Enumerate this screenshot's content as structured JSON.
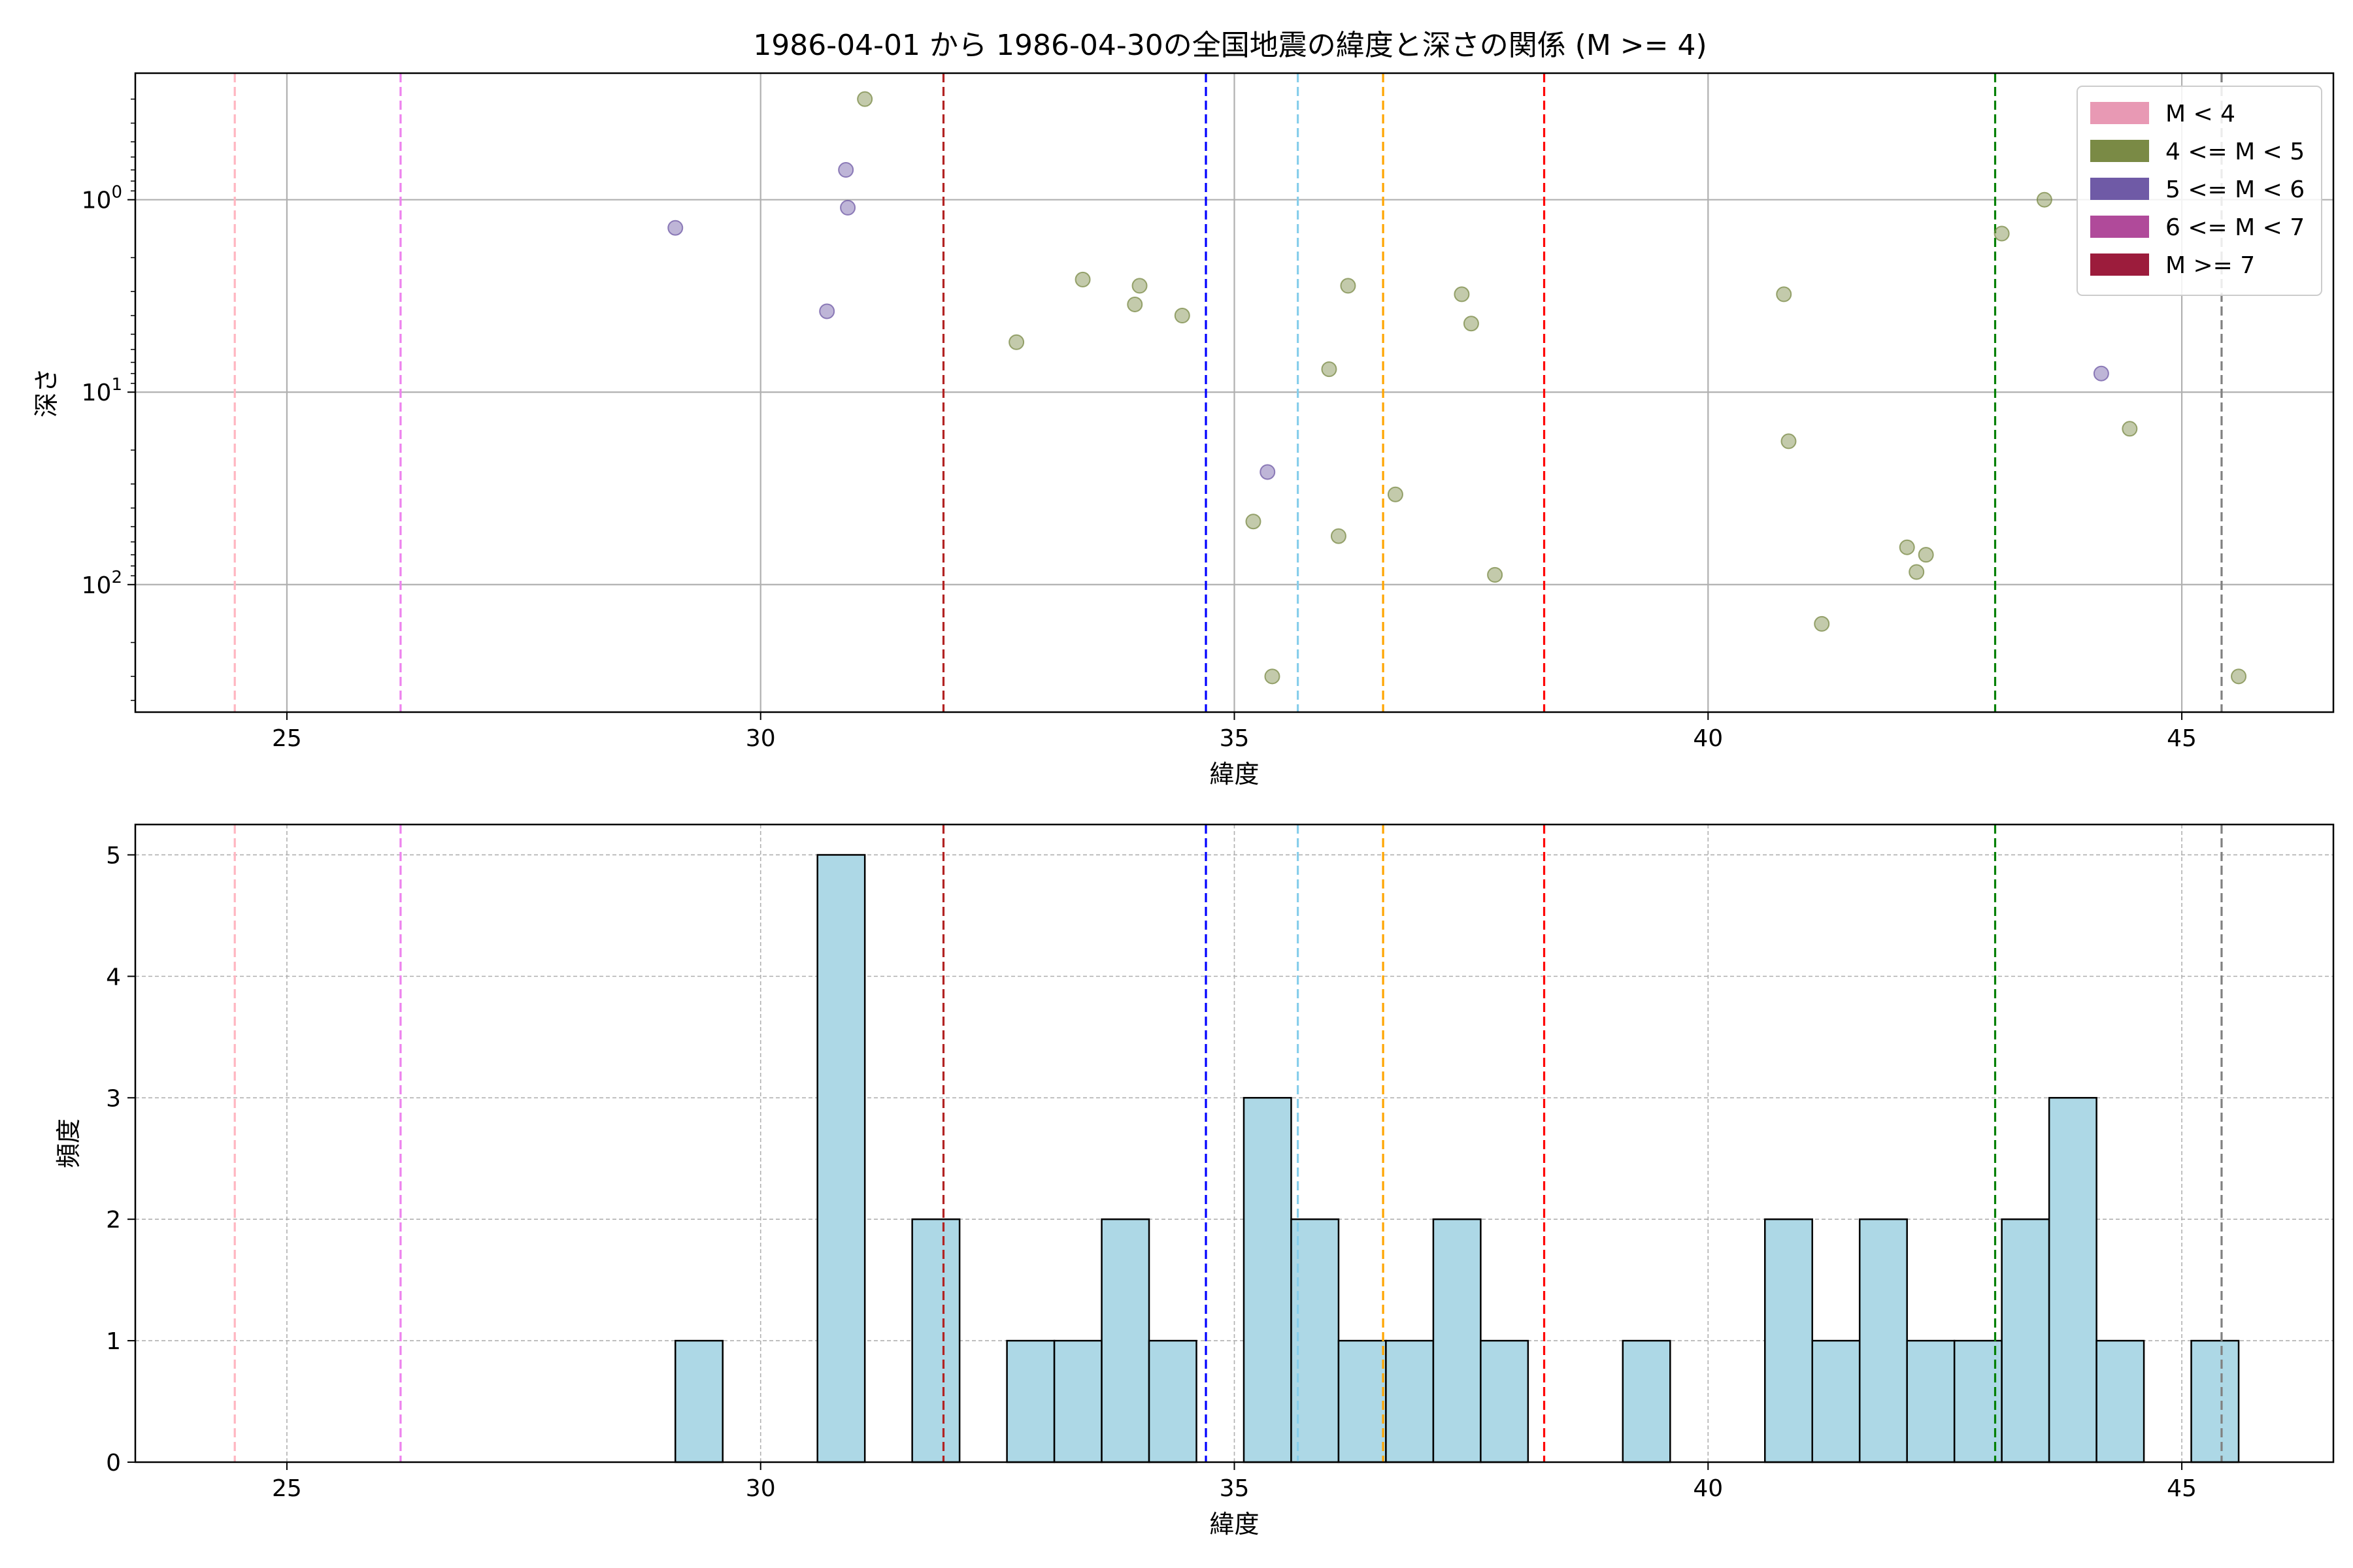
{
  "figure": {
    "title": "1986-04-01 から 1986-04-30の全国地震の緯度と深さの関係 (M >= 4)"
  },
  "chart_data": [
    {
      "type": "scatter",
      "title": "1986-04-01 から 1986-04-30の全国地震の緯度と深さの関係 (M >= 4)",
      "xlabel": "緯度",
      "ylabel": "深さ",
      "xlim": [
        23.4,
        46.6
      ],
      "ylim": [
        460,
        0.22
      ],
      "yscale": "log",
      "y_inverted": true,
      "grid": true,
      "legend_placement": "top-right",
      "x_ticks": [
        25,
        30,
        35,
        40,
        45
      ],
      "x_tick_labels": [
        "25",
        "30",
        "35",
        "40",
        "45"
      ],
      "y_ticks": [
        1,
        10,
        100
      ],
      "y_tick_labels": [
        {
          "base": "10",
          "exp": "0"
        },
        {
          "base": "10",
          "exp": "1"
        },
        {
          "base": "10",
          "exp": "2"
        }
      ],
      "legend": [
        {
          "label": "M < 4",
          "color": "#e899b4"
        },
        {
          "label": "4 <= M < 5",
          "color": "#7a8a45"
        },
        {
          "label": "5 <= M < 6",
          "color": "#6f5aa6"
        },
        {
          "label": "6 <= M < 7",
          "color": "#b04a9a"
        },
        {
          "label": "M >= 7",
          "color": "#9c1c3c"
        }
      ],
      "vlines": [
        {
          "x": 24.45,
          "color": "#ffb6c1"
        },
        {
          "x": 26.2,
          "color": "#ee82ee"
        },
        {
          "x": 31.93,
          "color": "#b22222"
        },
        {
          "x": 34.7,
          "color": "#0000ff"
        },
        {
          "x": 35.67,
          "color": "#87ceeb"
        },
        {
          "x": 36.57,
          "color": "#ffa500"
        },
        {
          "x": 38.27,
          "color": "#ff0000"
        },
        {
          "x": 43.03,
          "color": "#008000"
        },
        {
          "x": 45.42,
          "color": "#808080"
        }
      ],
      "series": [
        {
          "color": "#7a8a45",
          "points": [
            {
              "x": 31.1,
              "y": 0.3
            },
            {
              "x": 32.7,
              "y": 5.5
            },
            {
              "x": 33.4,
              "y": 2.6
            },
            {
              "x": 33.95,
              "y": 3.5
            },
            {
              "x": 34.0,
              "y": 2.8
            },
            {
              "x": 34.45,
              "y": 4.0
            },
            {
              "x": 35.2,
              "y": 47
            },
            {
              "x": 35.4,
              "y": 300
            },
            {
              "x": 36.0,
              "y": 7.6
            },
            {
              "x": 36.1,
              "y": 56
            },
            {
              "x": 36.2,
              "y": 2.8
            },
            {
              "x": 36.7,
              "y": 34
            },
            {
              "x": 37.4,
              "y": 3.1
            },
            {
              "x": 37.5,
              "y": 4.4
            },
            {
              "x": 37.75,
              "y": 89
            },
            {
              "x": 40.8,
              "y": 3.1
            },
            {
              "x": 40.85,
              "y": 18
            },
            {
              "x": 41.2,
              "y": 160
            },
            {
              "x": 42.1,
              "y": 64
            },
            {
              "x": 42.2,
              "y": 86
            },
            {
              "x": 42.3,
              "y": 70
            },
            {
              "x": 43.1,
              "y": 1.5
            },
            {
              "x": 43.55,
              "y": 1.0
            },
            {
              "x": 44.45,
              "y": 15.5
            },
            {
              "x": 45.6,
              "y": 300
            }
          ]
        },
        {
          "color": "#6f5aa6",
          "points": [
            {
              "x": 29.1,
              "y": 1.4
            },
            {
              "x": 30.7,
              "y": 3.8
            },
            {
              "x": 30.9,
              "y": 0.7
            },
            {
              "x": 30.92,
              "y": 1.1
            },
            {
              "x": 35.35,
              "y": 26
            },
            {
              "x": 44.15,
              "y": 8.0
            }
          ]
        }
      ]
    },
    {
      "type": "bar",
      "subtype": "histogram",
      "xlabel": "緯度",
      "ylabel": "頻度",
      "xlim": [
        23.4,
        46.6
      ],
      "ylim": [
        0,
        5.25
      ],
      "grid": true,
      "x_ticks": [
        25,
        30,
        35,
        40,
        45
      ],
      "x_tick_labels": [
        "25",
        "30",
        "35",
        "40",
        "45"
      ],
      "y_ticks": [
        0,
        1,
        2,
        3,
        4,
        5
      ],
      "y_tick_labels": [
        "0",
        "1",
        "2",
        "3",
        "4",
        "5"
      ],
      "bar_color": "#add8e6",
      "bin_width": 0.5,
      "bins": [
        {
          "start": 29.1,
          "count": 1
        },
        {
          "start": 30.6,
          "count": 5
        },
        {
          "start": 31.6,
          "count": 2
        },
        {
          "start": 32.6,
          "count": 1
        },
        {
          "start": 33.1,
          "count": 1
        },
        {
          "start": 33.6,
          "count": 2
        },
        {
          "start": 34.1,
          "count": 1
        },
        {
          "start": 35.1,
          "count": 3
        },
        {
          "start": 35.6,
          "count": 2
        },
        {
          "start": 36.1,
          "count": 1
        },
        {
          "start": 36.6,
          "count": 1
        },
        {
          "start": 37.1,
          "count": 2
        },
        {
          "start": 37.6,
          "count": 1
        },
        {
          "start": 39.1,
          "count": 1
        },
        {
          "start": 40.6,
          "count": 2
        },
        {
          "start": 41.1,
          "count": 1
        },
        {
          "start": 41.6,
          "count": 2
        },
        {
          "start": 42.1,
          "count": 1
        },
        {
          "start": 42.6,
          "count": 1
        },
        {
          "start": 43.1,
          "count": 2
        },
        {
          "start": 43.6,
          "count": 3
        },
        {
          "start": 44.1,
          "count": 1
        },
        {
          "start": 45.1,
          "count": 1
        }
      ],
      "vlines": [
        {
          "x": 24.45,
          "color": "#ffb6c1"
        },
        {
          "x": 26.2,
          "color": "#ee82ee"
        },
        {
          "x": 31.93,
          "color": "#b22222"
        },
        {
          "x": 34.7,
          "color": "#0000ff"
        },
        {
          "x": 35.67,
          "color": "#87ceeb"
        },
        {
          "x": 36.57,
          "color": "#ffa500"
        },
        {
          "x": 38.27,
          "color": "#ff0000"
        },
        {
          "x": 43.03,
          "color": "#008000"
        },
        {
          "x": 45.42,
          "color": "#808080"
        }
      ]
    }
  ]
}
